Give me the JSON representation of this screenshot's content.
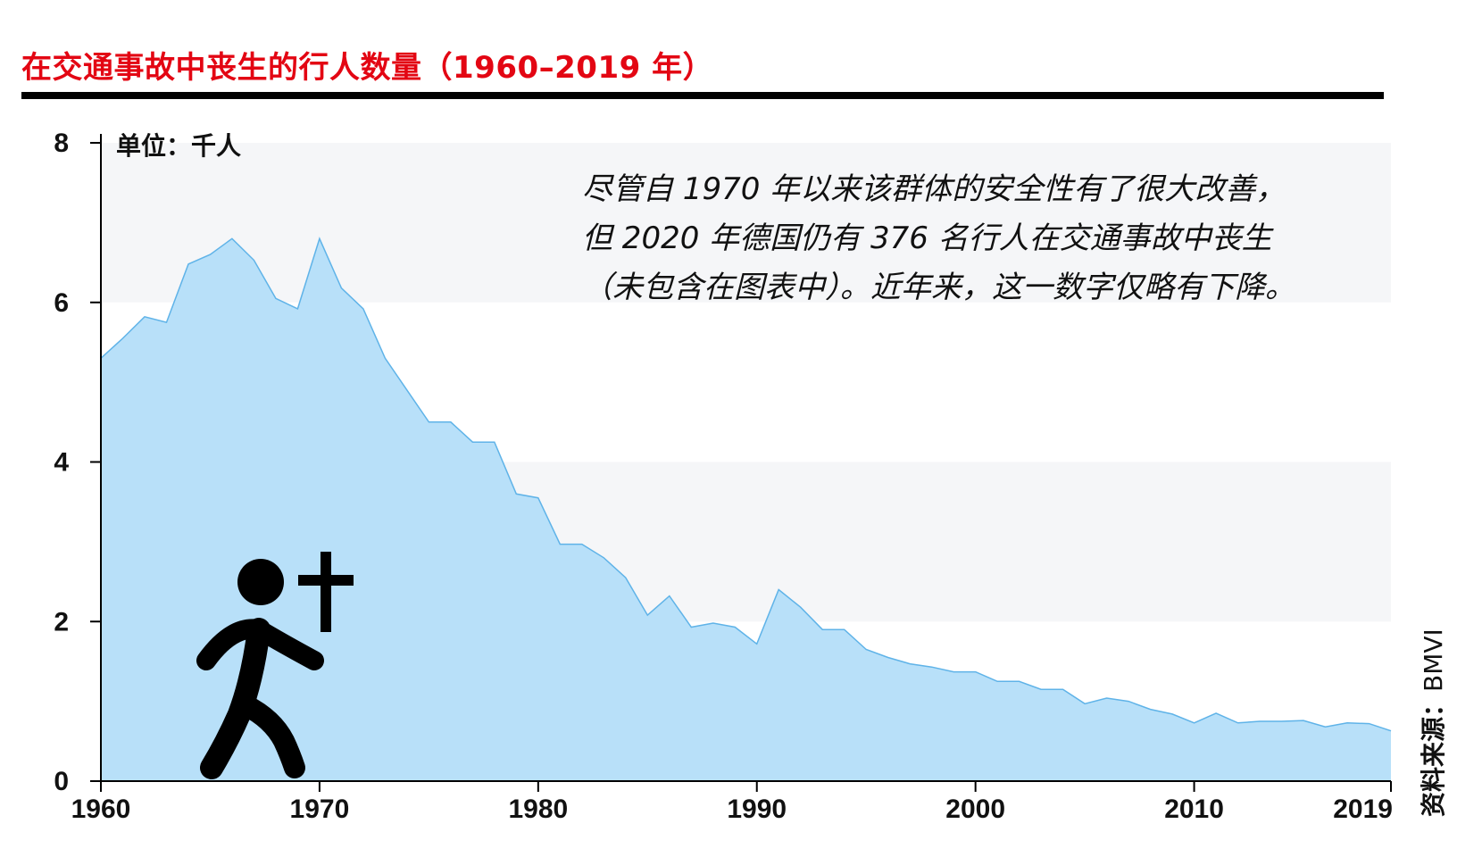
{
  "title": "在交通事故中丧生的行人数量（1960–2019 年）",
  "unit_label": "单位：千人",
  "annotation": [
    "尽管自 1970 年以来该群体的安全性有了很大改善，",
    "但 2020 年德国仍有 376 名行人在交通事故中丧生",
    "（未包含在图表中）。近年来，这一数字仅略有下降。"
  ],
  "source_label": "资料来源：",
  "source_value": "BMVI",
  "colors": {
    "title": "#e30613",
    "area_fill": "#b8e0f9",
    "area_line": "#5fb3e8",
    "band": "#f5f6f8",
    "rule": "#000000"
  },
  "icons": {
    "pedestrian": "walking-person-icon",
    "cross": "cross-icon"
  },
  "chart_data": {
    "type": "area",
    "title": "在交通事故中丧生的行人数量（1960–2019 年）",
    "ylabel": "单位：千人",
    "xlabel": "",
    "xlim": [
      1960,
      2019
    ],
    "ylim": [
      0,
      8
    ],
    "x_ticks": [
      1960,
      1970,
      1980,
      1990,
      2000,
      2010,
      2019
    ],
    "y_ticks": [
      0,
      2,
      4,
      6,
      8
    ],
    "grid": "alternating horizontal bands",
    "series": [
      {
        "x": [
          1960,
          1961,
          1962,
          1963,
          1964,
          1965,
          1966,
          1967,
          1968,
          1969,
          1970,
          1971,
          1972,
          1973,
          1974,
          1975,
          1976,
          1977,
          1978,
          1979,
          1980,
          1981,
          1982,
          1983,
          1984,
          1985,
          1986,
          1987,
          1988,
          1989,
          1990,
          1991,
          1992,
          1993,
          1994,
          1995,
          1996,
          1997,
          1998,
          1999,
          2000,
          2001,
          2002,
          2003,
          2004,
          2005,
          2006,
          2007,
          2008,
          2009,
          2010,
          2011,
          2012,
          2013,
          2014,
          2015,
          2016,
          2017,
          2018,
          2019
        ],
        "values": [
          5.3,
          5.55,
          5.82,
          5.75,
          6.48,
          6.6,
          6.8,
          6.53,
          6.05,
          5.92,
          6.8,
          6.18,
          5.92,
          5.3,
          4.9,
          4.5,
          4.5,
          4.25,
          4.25,
          3.6,
          3.55,
          2.97,
          2.97,
          2.8,
          2.55,
          2.08,
          2.32,
          1.93,
          1.98,
          1.93,
          1.72,
          2.4,
          2.18,
          1.9,
          1.9,
          1.65,
          1.55,
          1.47,
          1.43,
          1.37,
          1.37,
          1.25,
          1.25,
          1.15,
          1.15,
          0.97,
          1.04,
          1.0,
          0.9,
          0.84,
          0.73,
          0.85,
          0.73,
          0.75,
          0.75,
          0.76,
          0.68,
          0.73,
          0.72,
          0.63
        ]
      }
    ]
  }
}
